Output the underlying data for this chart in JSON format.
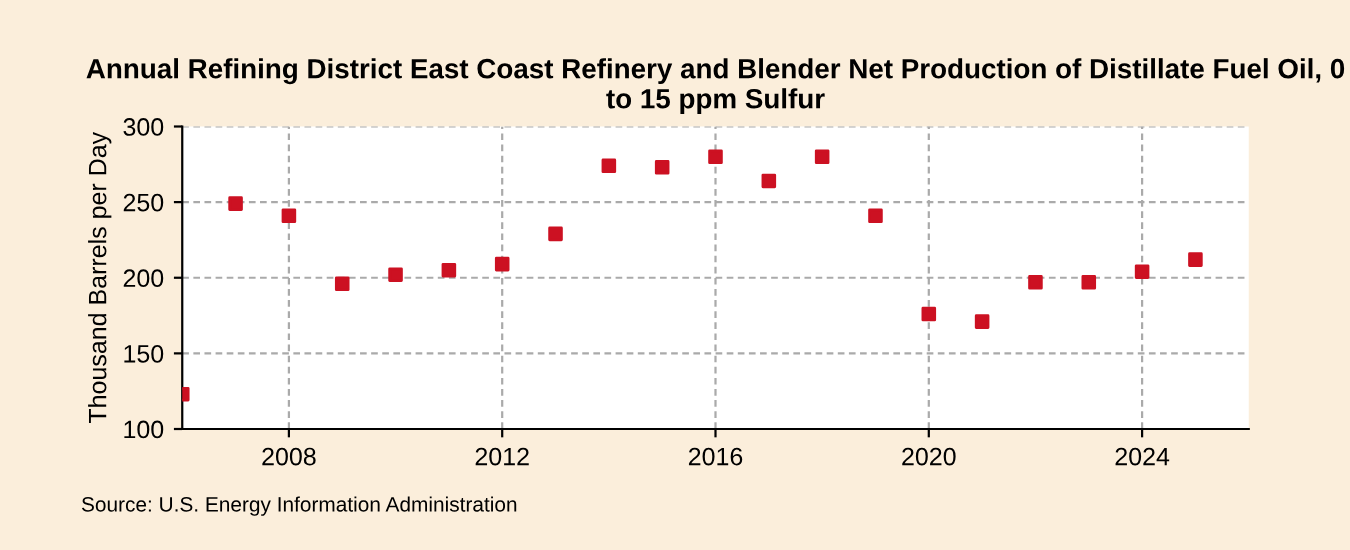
{
  "chart_data": {
    "type": "scatter",
    "title": "Annual Refining District East Coast Refinery and Blender Net Production of Distillate Fuel Oil, 0 to 15 ppm Sulfur",
    "ylabel": "Thousand Barrels per Day",
    "x": [
      2006,
      2007,
      2008,
      2009,
      2010,
      2011,
      2012,
      2013,
      2014,
      2015,
      2016,
      2017,
      2018,
      2019,
      2020,
      2021,
      2022,
      2023,
      2024,
      2025
    ],
    "series": [
      {
        "color": "#cc1122",
        "values": [
          123,
          249,
          241,
          196,
          202,
          205,
          209,
          229,
          274,
          273,
          280,
          264,
          280,
          241,
          176,
          171,
          197,
          197,
          204,
          212
        ]
      }
    ],
    "xlim": [
      2006,
      2026
    ],
    "xticks": [
      2008,
      2012,
      2016,
      2020,
      2024
    ],
    "ylim": [
      100,
      300
    ],
    "yticks": [
      100,
      150,
      200,
      250,
      300
    ],
    "grid": true,
    "marker": "square",
    "annotations": [
      "Source: U.S. Energy Information Administration"
    ]
  }
}
